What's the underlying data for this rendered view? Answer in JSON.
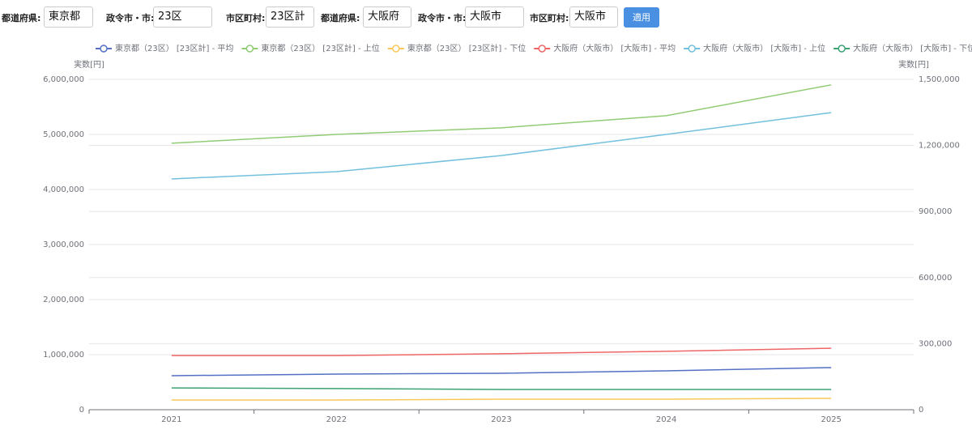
{
  "filters": [
    {
      "label": "都道府県:",
      "value": "東京都"
    },
    {
      "label": "政令市・市:",
      "value": "23区"
    },
    {
      "label": "市区町村:",
      "value": "23区計"
    },
    {
      "label": "都道府県:",
      "value": "大阪府"
    },
    {
      "label": "政令市・市:",
      "value": "大阪市"
    },
    {
      "label": "市区町村:",
      "value": "大阪市"
    }
  ],
  "button": "適用",
  "chart_data": {
    "type": "line",
    "y_label": "実数[円]",
    "y2_label": "実数[円]",
    "categories": [
      "2021",
      "2022",
      "2023",
      "2024",
      "2025"
    ],
    "ylim": [
      0,
      6000000
    ],
    "yticks": [
      0,
      {
        "value": 1000000,
        "label": "1,000,000"
      },
      {
        "value": 2000000,
        "label": "2,000,000"
      },
      {
        "value": 3000000,
        "label": "3,000,000"
      },
      {
        "value": 4000000,
        "label": "4,000,000"
      },
      {
        "value": 5000000,
        "label": "5,000,000"
      },
      {
        "value": 6000000,
        "label": "6,000,000"
      }
    ],
    "y2lim": [
      0,
      1500000
    ],
    "y2ticks": [
      0,
      {
        "value": 300000,
        "label": "300,000"
      },
      {
        "value": 600000,
        "label": "600,000"
      },
      {
        "value": 900000,
        "label": "900,000"
      },
      {
        "value": 1200000,
        "label": "1,200,000"
      },
      {
        "value": 1500000,
        "label": "1,500,000"
      }
    ],
    "grid": true,
    "series": [
      {
        "name": "東京都（23区） [23区計] - 平均",
        "color": "#5470c6",
        "values": [
          618000,
          647000,
          662000,
          706000,
          765000
        ]
      },
      {
        "name": "東京都（23区） [23区計] - 上位",
        "color": "#91cc75",
        "values": [
          4840000,
          5000000,
          5120000,
          5340000,
          5900000
        ]
      },
      {
        "name": "東京都（23区） [23区計] - 下位",
        "color": "#fac858",
        "values": [
          176000,
          176000,
          191000,
          191000,
          206000
        ]
      },
      {
        "name": "大阪府（大阪市） [大阪市] - 平均",
        "color": "#ee6666",
        "axis": "y2",
        "values": [
          246000,
          246000,
          254000,
          265000,
          279000
        ]
      },
      {
        "name": "大阪府（大阪市） [大阪市] - 上位",
        "color": "#73c0de",
        "axis": "y2",
        "values": [
          1048000,
          1081000,
          1154000,
          1250000,
          1349000
        ]
      },
      {
        "name": "大阪府（大阪市） [大阪市] - 下位",
        "color": "#3ba272",
        "axis": "y2",
        "values": [
          99000,
          96000,
          92000,
          92000,
          92000
        ]
      }
    ]
  }
}
